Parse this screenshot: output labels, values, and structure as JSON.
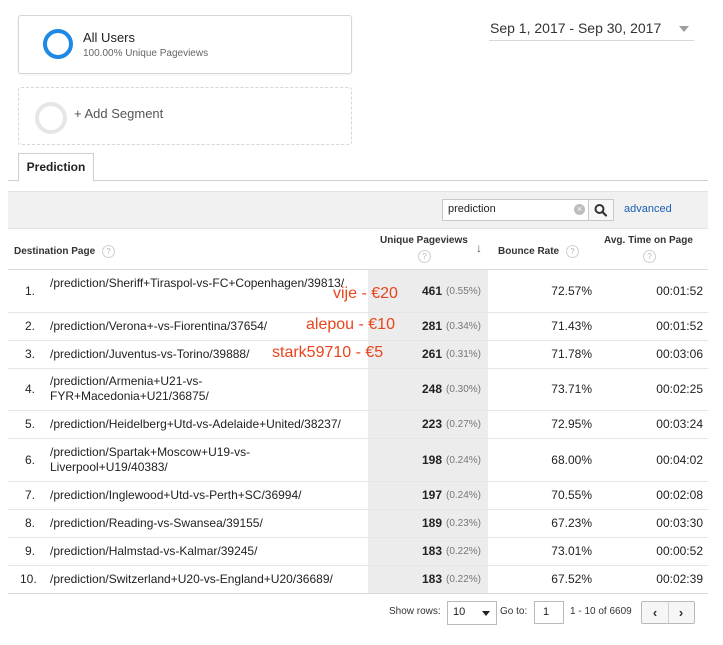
{
  "segments": {
    "active": {
      "title": "All Users",
      "subtitle": "100.00% Unique Pageviews"
    },
    "add_label": "+ Add Segment"
  },
  "date_range": "Sep 1, 2017 - Sep 30, 2017",
  "tab": {
    "label": "Prediction"
  },
  "filter": {
    "value": "prediction",
    "advanced_label": "advanced"
  },
  "table": {
    "headers": {
      "destination": "Destination Page",
      "unique_pageviews": "Unique Pageviews",
      "bounce_rate": "Bounce Rate",
      "avg_time": "Avg. Time on Page"
    },
    "rows": [
      {
        "num": "1.",
        "page": "/prediction/Sheriff+Tiraspol-vs-FC+Copenhagen/39813/",
        "upv": "461",
        "pct": "(0.55%)",
        "bounce": "72.57%",
        "avg": "00:01:52"
      },
      {
        "num": "2.",
        "page": "/prediction/Verona+-vs-Fiorentina/37654/",
        "upv": "281",
        "pct": "(0.34%)",
        "bounce": "71.43%",
        "avg": "00:01:52"
      },
      {
        "num": "3.",
        "page": "/prediction/Juventus-vs-Torino/39888/",
        "upv": "261",
        "pct": "(0.31%)",
        "bounce": "71.78%",
        "avg": "00:03:06"
      },
      {
        "num": "4.",
        "page": "/prediction/Armenia+U21-vs-FYR+Macedonia+U21/36875/",
        "upv": "248",
        "pct": "(0.30%)",
        "bounce": "73.71%",
        "avg": "00:02:25"
      },
      {
        "num": "5.",
        "page": "/prediction/Heidelberg+Utd-vs-Adelaide+United/38237/",
        "upv": "223",
        "pct": "(0.27%)",
        "bounce": "72.95%",
        "avg": "00:03:24"
      },
      {
        "num": "6.",
        "page": "/prediction/Spartak+Moscow+U19-vs-Liverpool+U19/40383/",
        "upv": "198",
        "pct": "(0.24%)",
        "bounce": "68.00%",
        "avg": "00:04:02"
      },
      {
        "num": "7.",
        "page": "/prediction/Inglewood+Utd-vs-Perth+SC/36994/",
        "upv": "197",
        "pct": "(0.24%)",
        "bounce": "70.55%",
        "avg": "00:02:08"
      },
      {
        "num": "8.",
        "page": "/prediction/Reading-vs-Swansea/39155/",
        "upv": "189",
        "pct": "(0.23%)",
        "bounce": "67.23%",
        "avg": "00:03:30"
      },
      {
        "num": "9.",
        "page": "/prediction/Halmstad-vs-Kalmar/39245/",
        "upv": "183",
        "pct": "(0.22%)",
        "bounce": "73.01%",
        "avg": "00:00:52"
      },
      {
        "num": "10.",
        "page": "/prediction/Switzerland+U20-vs-England+U20/36689/",
        "upv": "183",
        "pct": "(0.22%)",
        "bounce": "67.52%",
        "avg": "00:02:39"
      }
    ]
  },
  "annotations": [
    "vije - €20",
    "alepou - €10",
    "stark59710 - €5"
  ],
  "annotation_color": "#e8451b",
  "accent_color": "#1e88e5",
  "footer": {
    "show_rows_label": "Show rows:",
    "rows_value": "10",
    "goto_label": "Go to:",
    "goto_value": "1",
    "range_label": "1 - 10 of 6609",
    "prev": "‹",
    "next": "›"
  },
  "icons": {
    "help": "?",
    "sort_arrow": "↓",
    "clear": "×"
  }
}
